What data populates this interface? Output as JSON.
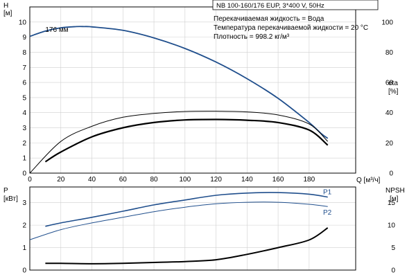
{
  "chart_data": [
    {
      "type": "line",
      "title": "NB 100-160/176 EUP, 3*400 V, 50Hz",
      "info_lines": [
        "Перекачиваемая жидкость = Вода",
        "Температура перекачиваемой жидкости = 20 °C",
        "Плотность = 998.2 кг/м³"
      ],
      "xlabel": "Q [м³/ч]",
      "ylabel_left": [
        "H",
        "[м]"
      ],
      "ylabel_right": [
        "eta",
        "[%]"
      ],
      "xlim": [
        0,
        210
      ],
      "x_ticks": [
        0,
        20,
        40,
        60,
        80,
        100,
        120,
        140,
        160,
        180
      ],
      "ylim_left": [
        0,
        11
      ],
      "y_ticks_left": [
        0,
        1,
        2,
        3,
        4,
        5,
        6,
        7,
        8,
        9,
        10
      ],
      "ylim_right": [
        0,
        110
      ],
      "y_ticks_right": [
        0,
        20,
        40,
        60,
        80,
        100
      ],
      "grid": true,
      "series": [
        {
          "name": "176 мм",
          "axis": "left",
          "color": "#1f4e8c",
          "x": [
            0,
            10,
            20,
            30,
            35,
            40,
            60,
            80,
            100,
            120,
            140,
            160,
            180,
            188,
            192
          ],
          "y": [
            9.05,
            9.4,
            9.62,
            9.7,
            9.7,
            9.68,
            9.45,
            8.95,
            8.25,
            7.35,
            6.25,
            4.95,
            3.35,
            2.6,
            2.3
          ]
        },
        {
          "axis": "right",
          "color": "#000000",
          "x": [
            0,
            20,
            40,
            60,
            80,
            100,
            120,
            140,
            160,
            180,
            192
          ],
          "y": [
            0,
            21,
            31,
            37,
            39.5,
            40.8,
            41,
            40.5,
            38.5,
            32.5,
            21
          ]
        },
        {
          "axis": "right",
          "color": "#000000",
          "x": [
            10,
            20,
            40,
            60,
            80,
            100,
            120,
            140,
            160,
            180,
            192
          ],
          "y": [
            7.5,
            14,
            24,
            30,
            33.5,
            35.2,
            35.5,
            35,
            33.5,
            28.5,
            18.5
          ]
        }
      ]
    },
    {
      "type": "line",
      "xlim": [
        0,
        210
      ],
      "ylabel_left": [
        "P",
        "[кВт]"
      ],
      "ylabel_right": [
        "NPSH",
        "[м]"
      ],
      "ylim_left": [
        0,
        3.7
      ],
      "y_ticks_left": [
        0,
        1,
        2,
        3
      ],
      "ylim_right": [
        0,
        18.5
      ],
      "y_ticks_right": [
        0,
        5,
        10,
        15
      ],
      "grid": true,
      "series": [
        {
          "name": "P1",
          "axis": "left",
          "color": "#1f4e8c",
          "x": [
            10,
            20,
            40,
            60,
            80,
            100,
            120,
            140,
            160,
            180,
            192
          ],
          "y": [
            1.95,
            2.1,
            2.35,
            2.62,
            2.9,
            3.12,
            3.33,
            3.43,
            3.45,
            3.38,
            3.25
          ]
        },
        {
          "name": "P2",
          "axis": "left",
          "color": "#1f4e8c",
          "x": [
            0,
            20,
            40,
            60,
            80,
            100,
            120,
            140,
            160,
            180,
            192
          ],
          "y": [
            1.35,
            1.8,
            2.1,
            2.35,
            2.6,
            2.8,
            2.95,
            3.02,
            3.02,
            2.93,
            2.83
          ]
        },
        {
          "name": "NPSH",
          "axis": "right",
          "color": "#000000",
          "x": [
            10,
            20,
            40,
            60,
            80,
            100,
            120,
            140,
            160,
            180,
            192
          ],
          "y": [
            1.5,
            1.5,
            1.4,
            1.5,
            1.7,
            1.9,
            2.3,
            3.5,
            5.0,
            6.7,
            9.4
          ]
        }
      ]
    }
  ]
}
